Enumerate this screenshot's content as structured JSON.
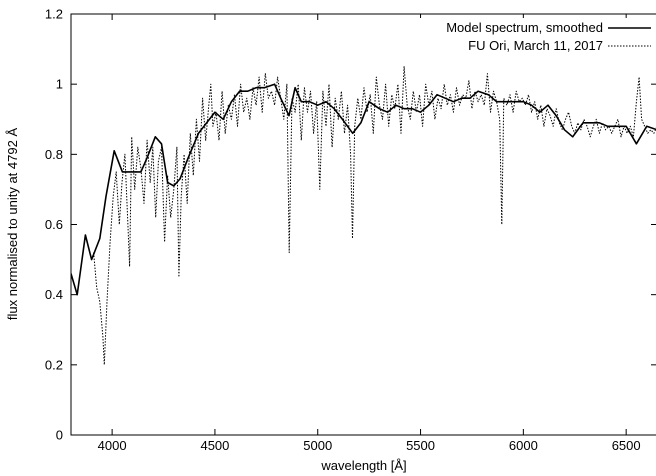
{
  "chart_data": {
    "type": "line",
    "title": "",
    "xlabel": "wavelength [Å]",
    "ylabel": "flux normalised to unity at 4792 Å",
    "xlim": [
      3800,
      6650
    ],
    "ylim": [
      0,
      1.2
    ],
    "xticks": [
      4000,
      4500,
      5000,
      5500,
      6000,
      6500
    ],
    "yticks": [
      0,
      0.2,
      0.4,
      0.6,
      0.8,
      1,
      1.2
    ],
    "xtick_labels": [
      "4000",
      "4500",
      "5000",
      "5500",
      "6000",
      "6500"
    ],
    "ytick_labels": [
      "0",
      "0.2",
      "0.4",
      "0.6",
      "0.8",
      "1",
      "1.2"
    ],
    "grid": false,
    "legend_position": "top-right",
    "series": [
      {
        "name": "Model spectrum, smoothed",
        "style": "solid",
        "color": "#000000",
        "x": [
          3800,
          3830,
          3870,
          3900,
          3940,
          3970,
          4010,
          4050,
          4080,
          4140,
          4170,
          4210,
          4240,
          4270,
          4300,
          4330,
          4370,
          4420,
          4460,
          4500,
          4540,
          4580,
          4620,
          4660,
          4700,
          4740,
          4790,
          4820,
          4860,
          4890,
          4920,
          4960,
          5000,
          5040,
          5080,
          5120,
          5170,
          5210,
          5250,
          5300,
          5340,
          5380,
          5420,
          5460,
          5500,
          5540,
          5580,
          5620,
          5660,
          5700,
          5740,
          5780,
          5830,
          5870,
          5920,
          5960,
          6000,
          6040,
          6080,
          6120,
          6160,
          6200,
          6240,
          6290,
          6330,
          6370,
          6410,
          6450,
          6500,
          6550,
          6600,
          6650
        ],
        "y": [
          0.46,
          0.4,
          0.57,
          0.5,
          0.56,
          0.68,
          0.81,
          0.75,
          0.75,
          0.75,
          0.79,
          0.85,
          0.83,
          0.72,
          0.71,
          0.73,
          0.79,
          0.86,
          0.89,
          0.92,
          0.9,
          0.95,
          0.98,
          0.98,
          0.99,
          0.99,
          1.0,
          0.96,
          0.91,
          0.99,
          0.95,
          0.95,
          0.94,
          0.95,
          0.93,
          0.9,
          0.86,
          0.89,
          0.95,
          0.93,
          0.92,
          0.94,
          0.93,
          0.93,
          0.92,
          0.94,
          0.97,
          0.96,
          0.95,
          0.96,
          0.96,
          0.98,
          0.97,
          0.95,
          0.95,
          0.95,
          0.95,
          0.94,
          0.92,
          0.94,
          0.91,
          0.87,
          0.85,
          0.89,
          0.89,
          0.89,
          0.88,
          0.88,
          0.88,
          0.83,
          0.88,
          0.87
        ]
      },
      {
        "name": "FU Ori, March 11, 2017",
        "style": "dotted",
        "color": "#000000",
        "x": [
          3910,
          3925,
          3940,
          3955,
          3962,
          3975,
          3990,
          4005,
          4020,
          4035,
          4048,
          4062,
          4078,
          4085,
          4095,
          4110,
          4125,
          4140,
          4155,
          4170,
          4185,
          4198,
          4212,
          4225,
          4240,
          4255,
          4270,
          4285,
          4300,
          4315,
          4325,
          4336,
          4350,
          4365,
          4380,
          4395,
          4410,
          4425,
          4440,
          4455,
          4470,
          4480,
          4490,
          4505,
          4520,
          4535,
          4550,
          4565,
          4580,
          4595,
          4610,
          4625,
          4640,
          4655,
          4670,
          4685,
          4700,
          4715,
          4730,
          4745,
          4760,
          4775,
          4790,
          4805,
          4820,
          4835,
          4850,
          4861,
          4875,
          4890,
          4905,
          4920,
          4935,
          4950,
          4965,
          4980,
          4995,
          5010,
          5025,
          5040,
          5055,
          5070,
          5085,
          5100,
          5115,
          5130,
          5145,
          5160,
          5169,
          5180,
          5195,
          5210,
          5225,
          5240,
          5255,
          5270,
          5285,
          5300,
          5315,
          5330,
          5345,
          5360,
          5375,
          5390,
          5405,
          5420,
          5435,
          5450,
          5465,
          5480,
          5495,
          5510,
          5525,
          5540,
          5555,
          5570,
          5585,
          5600,
          5615,
          5630,
          5645,
          5660,
          5675,
          5690,
          5705,
          5720,
          5735,
          5750,
          5765,
          5780,
          5795,
          5810,
          5825,
          5840,
          5855,
          5870,
          5885,
          5895,
          5905,
          5920,
          5935,
          5950,
          5965,
          5980,
          5995,
          6010,
          6025,
          6040,
          6055,
          6070,
          6085,
          6100,
          6115,
          6130,
          6145,
          6160,
          6175,
          6190,
          6205,
          6220,
          6235,
          6250,
          6265,
          6280,
          6295,
          6310,
          6325,
          6340,
          6355,
          6370,
          6385,
          6400,
          6415,
          6430,
          6445,
          6460,
          6475,
          6490,
          6505,
          6520,
          6535,
          6550,
          6563,
          6575,
          6590,
          6605,
          6620,
          6635,
          6650
        ],
        "y": [
          0.52,
          0.42,
          0.38,
          0.28,
          0.2,
          0.38,
          0.55,
          0.68,
          0.75,
          0.6,
          0.72,
          0.8,
          0.58,
          0.48,
          0.85,
          0.7,
          0.82,
          0.76,
          0.66,
          0.84,
          0.72,
          0.82,
          0.62,
          0.78,
          0.82,
          0.55,
          0.74,
          0.62,
          0.7,
          0.82,
          0.45,
          0.68,
          0.8,
          0.66,
          0.86,
          0.74,
          0.9,
          0.78,
          0.96,
          0.84,
          0.94,
          1.0,
          0.88,
          0.92,
          0.84,
          0.98,
          0.86,
          0.94,
          0.9,
          0.97,
          0.88,
          1.0,
          0.92,
          0.96,
          0.9,
          0.99,
          0.94,
          1.02,
          0.92,
          1.03,
          0.96,
          0.98,
          0.94,
          1.02,
          0.96,
          0.9,
          1.0,
          0.52,
          0.96,
          0.92,
          1.0,
          0.84,
          0.99,
          0.92,
          0.98,
          0.86,
          0.95,
          0.7,
          0.98,
          0.88,
          1.0,
          0.82,
          0.96,
          0.9,
          0.98,
          0.86,
          0.94,
          0.8,
          0.56,
          0.88,
          0.96,
          0.9,
          0.99,
          0.92,
          0.97,
          0.86,
          1.02,
          0.94,
          0.9,
          1.0,
          0.88,
          0.97,
          0.93,
          1.0,
          0.86,
          1.05,
          0.94,
          0.9,
          0.98,
          0.92,
          0.97,
          0.88,
          1.0,
          0.94,
          0.98,
          0.9,
          0.96,
          0.93,
          1.0,
          0.94,
          0.97,
          0.92,
          0.99,
          0.94,
          0.97,
          0.96,
          1.01,
          0.93,
          0.98,
          0.95,
          0.97,
          0.94,
          1.03,
          0.92,
          0.98,
          0.95,
          0.9,
          0.6,
          0.96,
          0.94,
          0.97,
          0.92,
          0.98,
          0.95,
          0.96,
          0.94,
          0.97,
          0.92,
          0.95,
          0.9,
          0.94,
          0.88,
          0.93,
          0.91,
          0.88,
          0.93,
          0.89,
          0.87,
          0.9,
          0.92,
          0.88,
          0.86,
          0.89,
          0.87,
          0.9,
          0.88,
          0.85,
          0.88,
          0.9,
          0.86,
          0.89,
          0.87,
          0.88,
          0.86,
          0.88,
          0.9,
          0.85,
          0.88,
          0.86,
          0.88,
          0.85,
          0.95,
          1.02,
          0.9,
          0.88,
          0.86,
          0.87,
          0.86,
          0.88
        ]
      }
    ]
  }
}
